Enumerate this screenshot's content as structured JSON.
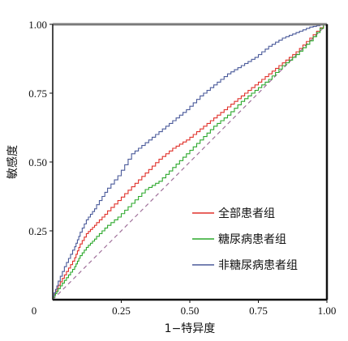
{
  "chart_data": {
    "type": "line",
    "xlabel": "1−特异度",
    "ylabel": "敏感度",
    "xlim": [
      0,
      1
    ],
    "ylim": [
      0,
      1
    ],
    "x_ticks": [
      "0.25",
      "0.50",
      "0.75",
      "1.00"
    ],
    "y_ticks": [
      "0.25",
      "0.50",
      "0.75",
      "1.00"
    ],
    "origin_label": "0",
    "grid": false,
    "legend_position": "bottom-right",
    "reference_line": {
      "from": [
        0,
        0
      ],
      "to": [
        1,
        1
      ],
      "color": "#a0709a",
      "style": "dashed"
    },
    "series": [
      {
        "name": "全部患者组",
        "color": "#e0302a",
        "x": [
          0,
          0.02,
          0.05,
          0.08,
          0.1,
          0.13,
          0.16,
          0.2,
          0.25,
          0.3,
          0.35,
          0.4,
          0.45,
          0.5,
          0.55,
          0.6,
          0.65,
          0.7,
          0.75,
          0.8,
          0.85,
          0.9,
          0.95,
          1.0
        ],
        "y": [
          0,
          0.04,
          0.09,
          0.14,
          0.19,
          0.24,
          0.27,
          0.31,
          0.36,
          0.41,
          0.46,
          0.51,
          0.55,
          0.58,
          0.62,
          0.66,
          0.7,
          0.74,
          0.78,
          0.82,
          0.86,
          0.9,
          0.95,
          1.0
        ]
      },
      {
        "name": "糖尿病患者组",
        "color": "#2ca82c",
        "x": [
          0,
          0.02,
          0.05,
          0.08,
          0.1,
          0.13,
          0.16,
          0.2,
          0.25,
          0.3,
          0.35,
          0.4,
          0.45,
          0.5,
          0.55,
          0.6,
          0.65,
          0.7,
          0.75,
          0.8,
          0.85,
          0.9,
          0.95,
          1.0
        ],
        "y": [
          0,
          0.03,
          0.07,
          0.11,
          0.15,
          0.19,
          0.22,
          0.26,
          0.3,
          0.35,
          0.4,
          0.43,
          0.48,
          0.53,
          0.58,
          0.63,
          0.67,
          0.72,
          0.76,
          0.8,
          0.85,
          0.89,
          0.94,
          1.0
        ]
      },
      {
        "name": "非糖尿病患者组",
        "color": "#4a5a9a",
        "x": [
          0,
          0.02,
          0.05,
          0.08,
          0.1,
          0.13,
          0.16,
          0.2,
          0.25,
          0.3,
          0.35,
          0.4,
          0.45,
          0.5,
          0.55,
          0.6,
          0.65,
          0.7,
          0.75,
          0.8,
          0.85,
          0.9,
          0.95,
          1.0
        ],
        "y": [
          0,
          0.05,
          0.12,
          0.18,
          0.23,
          0.29,
          0.33,
          0.39,
          0.45,
          0.53,
          0.57,
          0.61,
          0.65,
          0.69,
          0.74,
          0.78,
          0.82,
          0.85,
          0.88,
          0.92,
          0.95,
          0.97,
          0.99,
          1.0
        ]
      }
    ]
  }
}
